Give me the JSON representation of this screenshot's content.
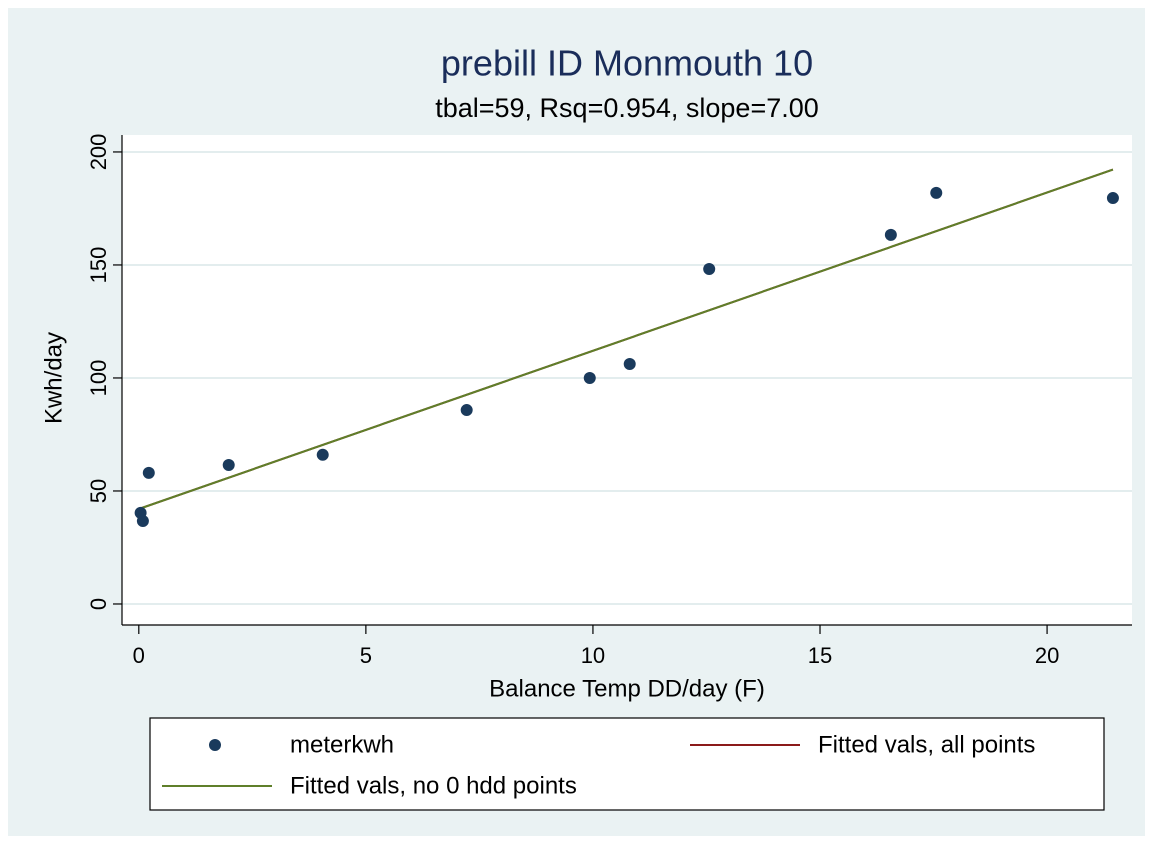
{
  "chart_data": {
    "type": "scatter",
    "title": "prebill  ID Monmouth 10",
    "subtitle": "tbal=59, Rsq=0.954, slope=7.00",
    "x_label": "Balance Temp DD/day (F)",
    "y_label": "Kwh/day",
    "xlim": [
      -0.37,
      21.87
    ],
    "xticks": [
      0,
      5,
      10,
      15,
      20
    ],
    "ylim": [
      -9.3,
      207.5
    ],
    "yticks": [
      0,
      50,
      100,
      150,
      200
    ],
    "grid": true,
    "series": [
      {
        "name": "meterkwh",
        "type": "scatter",
        "color": "#1a3a5c",
        "x": [
          0.04,
          0.09,
          0.22,
          1.98,
          4.05,
          7.22,
          9.93,
          10.81,
          12.56,
          16.56,
          17.56,
          21.45
        ],
        "values": [
          40.3,
          36.7,
          58,
          61.5,
          66,
          85.8,
          100,
          106.2,
          148.2,
          163.3,
          181.9,
          179.6
        ]
      },
      {
        "name": "Fitted vals, all points",
        "type": "line",
        "color": "#8b1a1a",
        "x": [
          0.04,
          21.45
        ],
        "values": [
          42.3,
          192.2
        ]
      },
      {
        "name": "Fitted vals, no 0 hdd points",
        "type": "line",
        "color": "#5f7f2a",
        "x": [
          0.04,
          21.45
        ],
        "values": [
          42.3,
          192.2
        ]
      }
    ]
  }
}
